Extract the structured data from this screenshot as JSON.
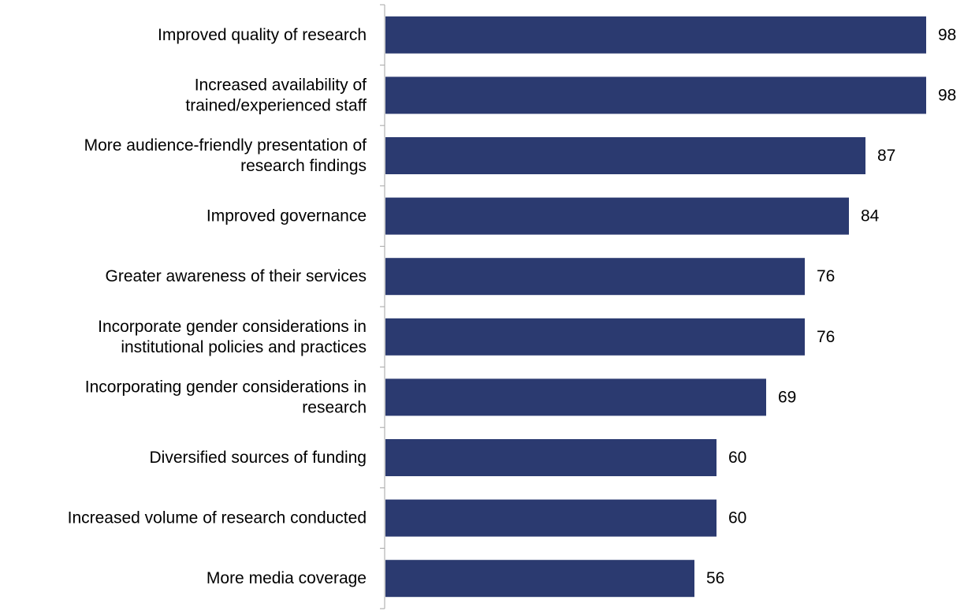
{
  "chart_data": {
    "type": "bar",
    "orientation": "horizontal",
    "categories": [
      [
        "Improved quality of research"
      ],
      [
        "Increased availability of",
        "trained/experienced staff"
      ],
      [
        "More audience-friendly presentation of",
        "research findings"
      ],
      [
        "Improved governance"
      ],
      [
        "Greater awareness of their services"
      ],
      [
        "Incorporate gender considerations in",
        "institutional policies and practices"
      ],
      [
        "Incorporating gender considerations in",
        "research"
      ],
      [
        "Diversified sources of funding"
      ],
      [
        "Increased volume of research conducted"
      ],
      [
        "More media coverage"
      ]
    ],
    "values": [
      98,
      98,
      87,
      84,
      76,
      76,
      69,
      60,
      60,
      56
    ],
    "data_labels": [
      "98",
      "98",
      "87",
      "84",
      "76",
      "76",
      "69",
      "60",
      "60",
      "56"
    ],
    "title": "",
    "xlabel": "",
    "ylabel": "",
    "xlim": [
      0,
      100
    ],
    "grid": false,
    "legend": "none",
    "bar_color": "#2B3A70",
    "axis_color": "#A6A6A6"
  }
}
